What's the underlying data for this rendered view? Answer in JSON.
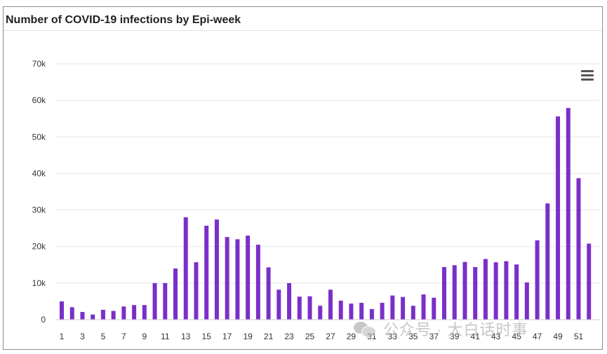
{
  "chart_data": {
    "type": "bar",
    "title": "Number of COVID-19 infections by Epi-week",
    "xlabel": "",
    "ylabel": "",
    "ylim": [
      0,
      70000
    ],
    "yticks": [
      {
        "value": 0,
        "label": "0"
      },
      {
        "value": 10000,
        "label": "10k"
      },
      {
        "value": 20000,
        "label": "20k"
      },
      {
        "value": 30000,
        "label": "30k"
      },
      {
        "value": 40000,
        "label": "40k"
      },
      {
        "value": 50000,
        "label": "50k"
      },
      {
        "value": 60000,
        "label": "60k"
      },
      {
        "value": 70000,
        "label": "70k"
      }
    ],
    "xtick_labels": [
      "1",
      "3",
      "5",
      "7",
      "9",
      "11",
      "13",
      "15",
      "17",
      "19",
      "21",
      "23",
      "25",
      "27",
      "29",
      "31",
      "33",
      "35",
      "37",
      "39",
      "41",
      "43",
      "45",
      "47",
      "49",
      "51"
    ],
    "categories": [
      "1",
      "2",
      "3",
      "4",
      "5",
      "6",
      "7",
      "8",
      "9",
      "10",
      "11",
      "12",
      "13",
      "14",
      "15",
      "16",
      "17",
      "18",
      "19",
      "20",
      "21",
      "22",
      "23",
      "24",
      "25",
      "26",
      "27",
      "28",
      "29",
      "30",
      "31",
      "32",
      "33",
      "34",
      "35",
      "36",
      "37",
      "38",
      "39",
      "40",
      "41",
      "42",
      "43",
      "44",
      "45",
      "46",
      "47",
      "48",
      "49",
      "50",
      "51",
      "52"
    ],
    "values": [
      5000,
      3400,
      2100,
      1400,
      2700,
      2400,
      3600,
      4000,
      4000,
      10000,
      10000,
      14000,
      28000,
      15700,
      25700,
      27400,
      22600,
      22000,
      23000,
      20500,
      14300,
      8200,
      10000,
      6300,
      6400,
      3800,
      8200,
      5200,
      4400,
      4600,
      2900,
      4600,
      6600,
      6200,
      3800,
      6900,
      6000,
      14400,
      14900,
      15800,
      14400,
      16600,
      15700,
      16000,
      15100,
      10200,
      21700,
      31800,
      55600,
      57900,
      38700,
      20800
    ],
    "grid": true,
    "legend": "none",
    "colors": {
      "bar": "#7b2fc9",
      "grid": "#e6e6e6",
      "axis": "#cccccc",
      "tick_text": "#333333"
    }
  },
  "watermark": {
    "icon": "wechat-icon",
    "text": "公众号 · 大白话时事"
  },
  "menu": {
    "icon": "hamburger-menu-icon"
  }
}
